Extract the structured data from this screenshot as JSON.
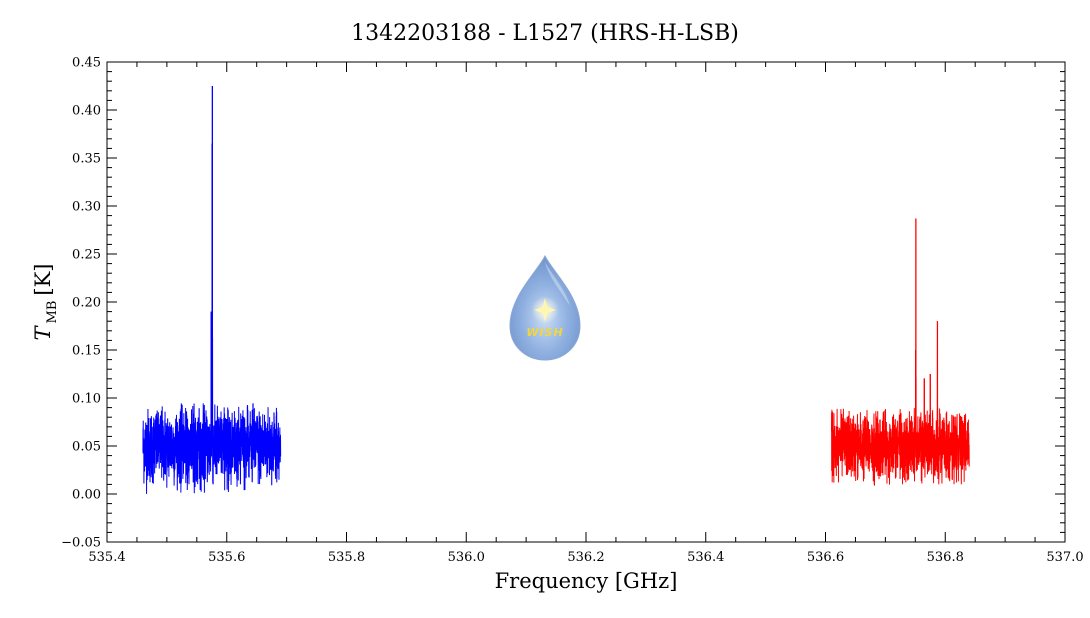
{
  "chart_data": {
    "type": "line",
    "title": "1342203188 - L1527 (HRS-H-LSB)",
    "xlabel": "Frequency [GHz]",
    "ylabel_main": "T",
    "ylabel_sub": "MB",
    "ylabel_unit": "[K]",
    "xlim": [
      535.4,
      537.0
    ],
    "ylim": [
      -0.05,
      0.45
    ],
    "x_ticks": [
      535.4,
      535.6,
      535.8,
      536.0,
      536.2,
      536.4,
      536.6,
      536.8,
      537.0
    ],
    "x_tick_labels": [
      "535.4",
      "535.6",
      "535.8",
      "536.0",
      "536.2",
      "536.4",
      "536.6",
      "536.8",
      "537.0"
    ],
    "y_ticks": [
      -0.05,
      0.0,
      0.05,
      0.1,
      0.15,
      0.2,
      0.25,
      0.3,
      0.35,
      0.4,
      0.45
    ],
    "y_tick_labels": [
      "−0.05",
      "0.00",
      "0.05",
      "0.10",
      "0.15",
      "0.20",
      "0.25",
      "0.30",
      "0.35",
      "0.40",
      "0.45"
    ],
    "grid": false,
    "series": [
      {
        "color": "#0000ff",
        "x_range": [
          535.46,
          535.69
        ],
        "baseline": 0.05,
        "noise_min": 0.0,
        "noise_max": 0.095,
        "peaks": [
          {
            "x": 535.576,
            "y": 0.425
          },
          {
            "x": 535.5755,
            "y": 0.365
          },
          {
            "x": 535.574,
            "y": 0.19
          }
        ]
      },
      {
        "color": "#ff0000",
        "x_range": [
          536.61,
          536.84
        ],
        "baseline": 0.05,
        "noise_min": 0.008,
        "noise_max": 0.09,
        "peaks": [
          {
            "x": 536.751,
            "y": 0.287
          },
          {
            "x": 536.7505,
            "y": 0.15
          },
          {
            "x": 536.787,
            "y": 0.18
          },
          {
            "x": 536.775,
            "y": 0.125
          },
          {
            "x": 536.765,
            "y": 0.12
          }
        ]
      }
    ]
  },
  "logo": {
    "text": "WISH",
    "color": "#7aa0d8"
  }
}
